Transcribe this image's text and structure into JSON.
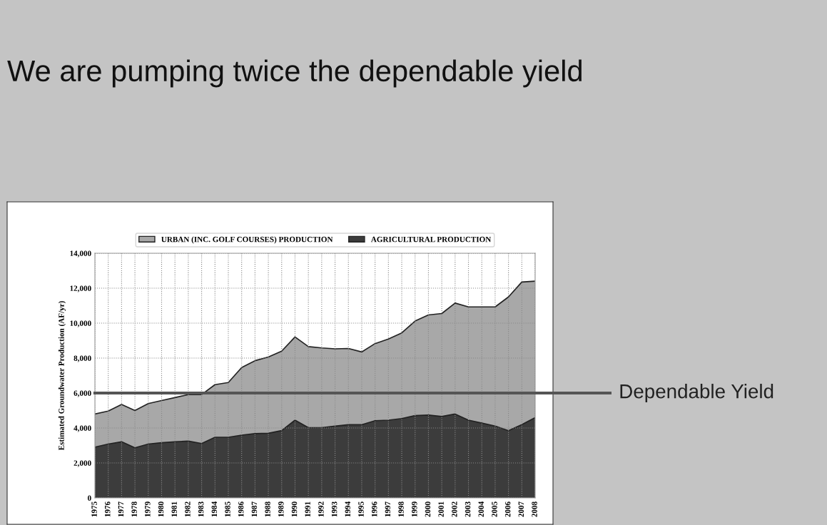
{
  "chart_data": {
    "type": "area",
    "stacked": true,
    "title": "We are pumping twice the dependable yield",
    "ylabel": "Estimated Groundwater Production (AF/yr)",
    "categories": [
      "1975",
      "1976",
      "1977",
      "1978",
      "1979",
      "1980",
      "1981",
      "1982",
      "1983",
      "1984",
      "1985",
      "1986",
      "1987",
      "1988",
      "1989",
      "1990",
      "1991",
      "1992",
      "1993",
      "1994",
      "1995",
      "1996",
      "1997",
      "1998",
      "1999",
      "2000",
      "2001",
      "2002",
      "2003",
      "2004",
      "2005",
      "2006",
      "2007",
      "2008"
    ],
    "series": [
      {
        "name": "AGRICULTURAL PRODUCTION",
        "color": "#3c3c3c",
        "values": [
          2900,
          3080,
          3210,
          2870,
          3080,
          3160,
          3210,
          3250,
          3110,
          3470,
          3470,
          3590,
          3680,
          3700,
          3850,
          4450,
          4020,
          4020,
          4110,
          4190,
          4190,
          4420,
          4450,
          4540,
          4710,
          4740,
          4660,
          4800,
          4450,
          4280,
          4110,
          3850,
          4190,
          4590
        ]
      },
      {
        "name": "URBAN (INC. GOLF COURSES) PRODUCTION",
        "color": "#a8a8a8",
        "values": [
          1900,
          1890,
          2140,
          2130,
          2320,
          2410,
          2530,
          2660,
          2800,
          3010,
          3130,
          3870,
          4170,
          4360,
          4550,
          4760,
          4640,
          4560,
          4420,
          4360,
          4160,
          4410,
          4640,
          4900,
          5410,
          5730,
          5890,
          6350,
          6480,
          6650,
          6820,
          7650,
          8160,
          7810
        ]
      }
    ],
    "ylim": [
      0,
      14000
    ],
    "yticks": [
      0,
      {
        "value": 2000,
        "label": "2,000"
      },
      {
        "value": 4000,
        "label": "4,000"
      },
      {
        "value": 6000,
        "label": "6,000"
      },
      {
        "value": 8000,
        "label": "8,000"
      },
      {
        "value": 10000,
        "label": "10,000"
      },
      {
        "value": 12000,
        "label": "12,000"
      },
      {
        "value": 14000,
        "label": "14,000"
      }
    ],
    "ref_lines": [
      {
        "axis": "y",
        "value": 6000,
        "label": "Dependable Yield",
        "color": "#555555"
      }
    ],
    "grid": true,
    "legend": "top"
  }
}
